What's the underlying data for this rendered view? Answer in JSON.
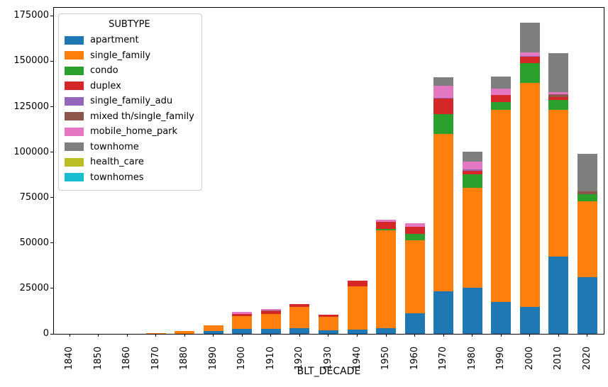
{
  "figure": {
    "title": "",
    "xlabel": "BLT_DECADE",
    "ylabel": ""
  },
  "legend": {
    "title": "SUBTYPE",
    "position": "upper left"
  },
  "axes": {
    "y_tick_values": [
      0,
      25000,
      50000,
      75000,
      100000,
      125000,
      150000,
      175000
    ],
    "y_tick_labels": [
      "0",
      "25000",
      "50000",
      "75000",
      "100000",
      "125000",
      "150000",
      "175000"
    ],
    "x_tick_labels": [
      "1840",
      "1850",
      "1860",
      "1870",
      "1880",
      "1890",
      "1900",
      "1910",
      "1920",
      "1930",
      "1940",
      "1950",
      "1960",
      "1970",
      "1980",
      "1990",
      "2000",
      "2010",
      "2020"
    ]
  },
  "chart_data": {
    "type": "bar",
    "stacked": true,
    "title": "",
    "xlabel": "BLT_DECADE",
    "ylabel": "",
    "ylim": [
      0,
      175000
    ],
    "grid": false,
    "legend_title": "SUBTYPE",
    "legend_position": "upper left",
    "categories": [
      "1840",
      "1850",
      "1860",
      "1870",
      "1880",
      "1890",
      "1900",
      "1910",
      "1920",
      "1930",
      "1940",
      "1950",
      "1960",
      "1970",
      "1980",
      "1990",
      "2000",
      "2010",
      "2020"
    ],
    "series": [
      {
        "name": "apartment",
        "color": "#1f77b4",
        "values": [
          0,
          0,
          0,
          0,
          0,
          1500,
          2700,
          2900,
          3000,
          1800,
          2200,
          3300,
          11400,
          23400,
          25400,
          17700,
          14800,
          42400,
          31100
        ]
      },
      {
        "name": "single_family",
        "color": "#ff7f0e",
        "values": [
          0,
          0,
          0,
          300,
          1400,
          3000,
          7000,
          8100,
          11800,
          7400,
          24100,
          53700,
          39900,
          86700,
          54900,
          105400,
          123200,
          80700,
          42000
        ]
      },
      {
        "name": "condo",
        "color": "#2ca02c",
        "values": [
          0,
          0,
          0,
          0,
          0,
          0,
          0,
          0,
          0,
          0,
          0,
          800,
          3600,
          10900,
          7500,
          4600,
          11100,
          5500,
          3900
        ]
      },
      {
        "name": "duplex",
        "color": "#d62728",
        "values": [
          0,
          0,
          0,
          0,
          0,
          0,
          1200,
          1400,
          1450,
          1200,
          3000,
          3900,
          3900,
          8400,
          1800,
          3700,
          3500,
          1600,
          0
        ]
      },
      {
        "name": "single_family_adu",
        "color": "#9467bd",
        "values": [
          0,
          0,
          0,
          0,
          0,
          0,
          0,
          0,
          0,
          0,
          0,
          0,
          0,
          400,
          800,
          0,
          400,
          0,
          0
        ]
      },
      {
        "name": "mixed th/single_family",
        "color": "#8c564b",
        "values": [
          0,
          0,
          0,
          0,
          0,
          0,
          0,
          400,
          0,
          0,
          0,
          0,
          0,
          0,
          0,
          0,
          0,
          1500,
          1300
        ]
      },
      {
        "name": "mobile_home_park",
        "color": "#e377c2",
        "values": [
          0,
          0,
          0,
          0,
          0,
          0,
          1000,
          1000,
          0,
          0,
          0,
          1100,
          1950,
          6900,
          4200,
          3700,
          1800,
          1200,
          0
        ]
      },
      {
        "name": "townhome",
        "color": "#7f7f7f",
        "values": [
          0,
          0,
          0,
          0,
          0,
          0,
          0,
          0,
          0,
          0,
          0,
          0,
          0,
          4600,
          5500,
          6500,
          16400,
          21500,
          20800
        ]
      },
      {
        "name": "health_care",
        "color": "#bcbd22",
        "values": [
          0,
          0,
          0,
          0,
          0,
          0,
          0,
          0,
          0,
          0,
          0,
          0,
          0,
          0,
          0,
          0,
          0,
          0,
          0
        ]
      },
      {
        "name": "townhomes",
        "color": "#17becf",
        "values": [
          0,
          0,
          0,
          0,
          0,
          0,
          0,
          0,
          0,
          0,
          0,
          0,
          0,
          0,
          0,
          0,
          0,
          0,
          0
        ]
      }
    ]
  }
}
